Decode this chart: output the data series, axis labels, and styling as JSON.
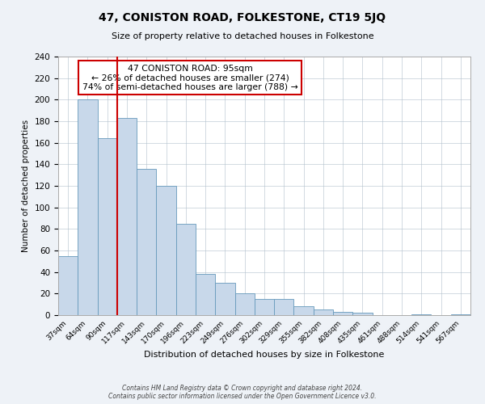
{
  "title": "47, CONISTON ROAD, FOLKESTONE, CT19 5JQ",
  "subtitle": "Size of property relative to detached houses in Folkestone",
  "xlabel": "Distribution of detached houses by size in Folkestone",
  "ylabel": "Number of detached properties",
  "footer_line1": "Contains HM Land Registry data © Crown copyright and database right 2024.",
  "footer_line2": "Contains public sector information licensed under the Open Government Licence v3.0.",
  "bin_labels": [
    "37sqm",
    "64sqm",
    "90sqm",
    "117sqm",
    "143sqm",
    "170sqm",
    "196sqm",
    "223sqm",
    "249sqm",
    "276sqm",
    "302sqm",
    "329sqm",
    "355sqm",
    "382sqm",
    "408sqm",
    "435sqm",
    "461sqm",
    "488sqm",
    "514sqm",
    "541sqm",
    "567sqm"
  ],
  "bar_heights": [
    55,
    200,
    164,
    183,
    136,
    120,
    85,
    38,
    30,
    20,
    15,
    15,
    8,
    5,
    3,
    2,
    0,
    0,
    1,
    0,
    1
  ],
  "bar_color": "#c8d8ea",
  "bar_edge_color": "#6699bb",
  "vline_x_idx": 2,
  "vline_color": "#cc0000",
  "annotation_text": "47 CONISTON ROAD: 95sqm\n← 26% of detached houses are smaller (274)\n74% of semi-detached houses are larger (788) →",
  "annotation_box_color": "#ffffff",
  "annotation_box_edge": "#cc0000",
  "ylim": [
    0,
    240
  ],
  "yticks": [
    0,
    20,
    40,
    60,
    80,
    100,
    120,
    140,
    160,
    180,
    200,
    220,
    240
  ],
  "bg_color": "#eef2f7",
  "plot_bg_color": "#ffffff",
  "grid_color": "#b0bfcc"
}
